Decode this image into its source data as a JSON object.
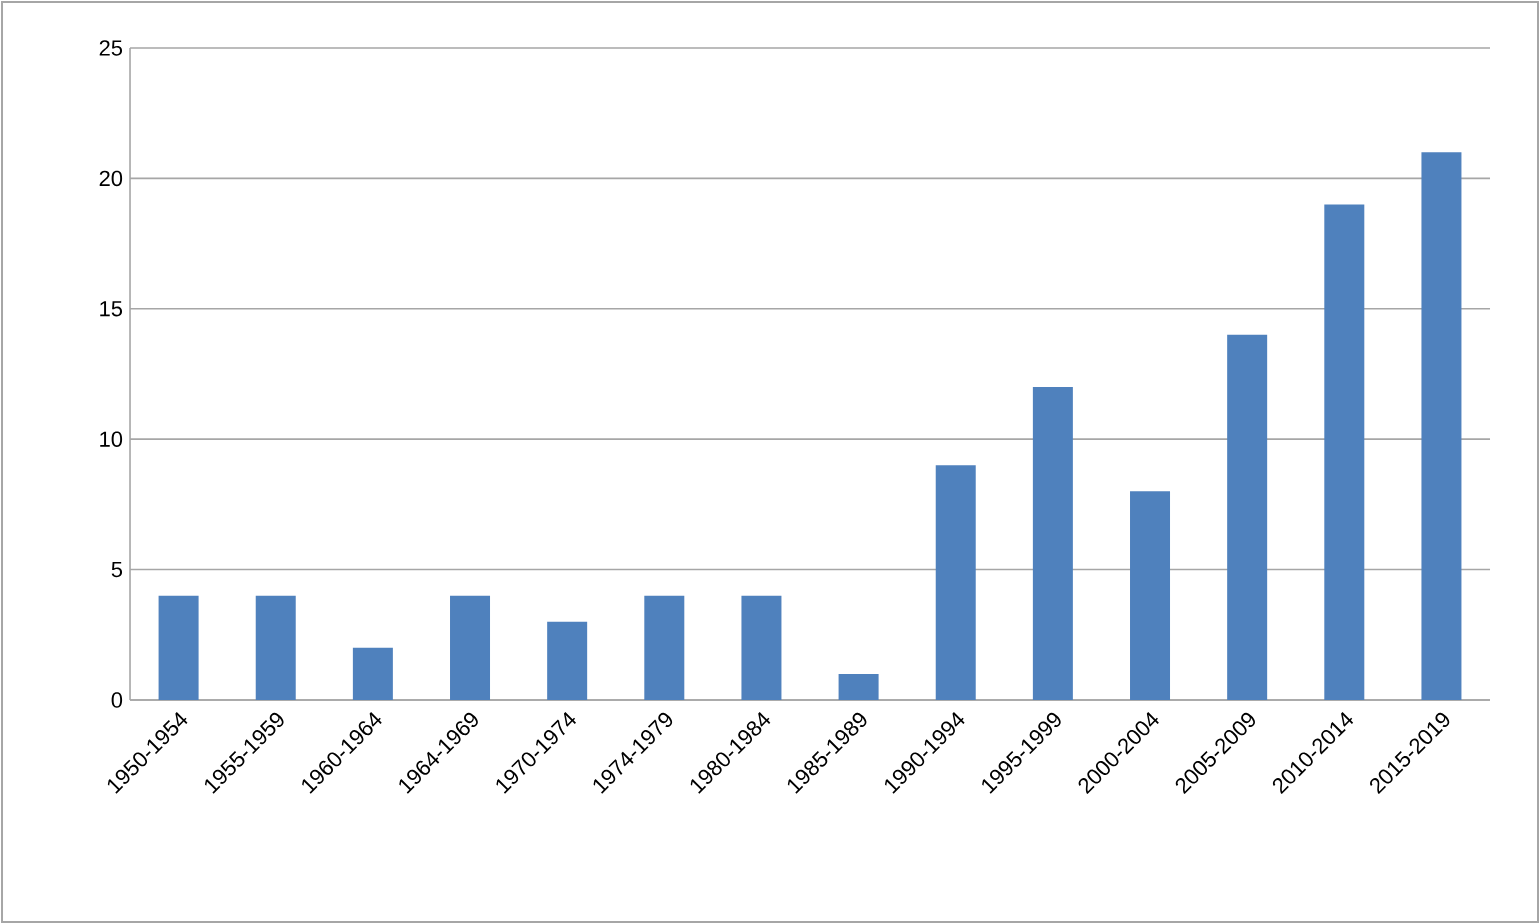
{
  "chart_data": {
    "type": "bar",
    "categories": [
      "1950-1954",
      "1955-1959",
      "1960-1964",
      "1964-1969",
      "1970-1974",
      "1974-1979",
      "1980-1984",
      "1985-1989",
      "1990-1994",
      "1995-1999",
      "2000-2004",
      "2005-2009",
      "2010-2014",
      "2015-2019"
    ],
    "values": [
      4,
      4,
      2,
      4,
      3,
      4,
      4,
      1,
      9,
      12,
      8,
      14,
      19,
      21
    ],
    "color": "#4f81bd",
    "ylim": [
      0,
      25
    ],
    "yticks": [
      0,
      5,
      10,
      15,
      20,
      25
    ],
    "grid": "y"
  }
}
